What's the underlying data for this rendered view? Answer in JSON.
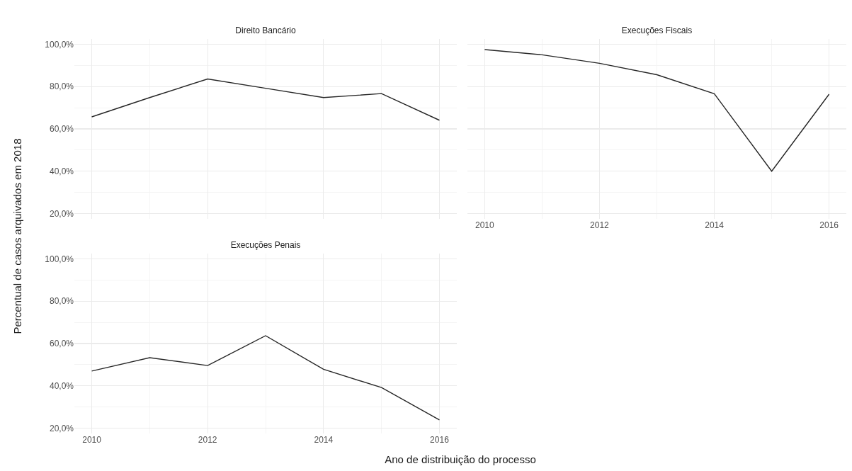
{
  "chart_data": [
    {
      "type": "line",
      "title": "Direito Bancário",
      "ylabel": "Percentual de casos arquivados em 2018",
      "x": [
        2010,
        2011,
        2012,
        2013,
        2014,
        2015,
        2016
      ],
      "series": [
        {
          "color": "#262626",
          "values": [
            65.7,
            74.8,
            83.6,
            79.2,
            74.8,
            76.7,
            64.1
          ]
        }
      ],
      "xlim": [
        2009.7,
        2016.3
      ],
      "xticks": [
        2010,
        2012,
        2014,
        2016
      ],
      "ylim": [
        17.5,
        102.5
      ],
      "yticks": [
        {
          "value": 20,
          "label": "20,0%"
        },
        {
          "value": 40,
          "label": "40,0%"
        },
        {
          "value": 60,
          "label": "60,0%"
        },
        {
          "value": 80,
          "label": "80,0%"
        },
        {
          "value": 100,
          "label": "100,0%"
        }
      ],
      "grid": true,
      "tick_labels": "y",
      "marker": "none",
      "line_style": "solid"
    },
    {
      "type": "line",
      "title": "Execuções Fiscais",
      "x": [
        2010,
        2011,
        2012,
        2013,
        2014,
        2015,
        2016
      ],
      "series": [
        {
          "color": "#262626",
          "values": [
            97.5,
            95,
            91,
            85.6,
            76.6,
            40,
            76.4
          ]
        }
      ],
      "xlim": [
        2009.7,
        2016.3
      ],
      "xticks": [
        2010,
        2012,
        2014,
        2016
      ],
      "ylim": [
        17.5,
        102.5
      ],
      "yticks": [
        20,
        40,
        60,
        80,
        100
      ],
      "grid": true,
      "tick_labels": "x",
      "marker": "none",
      "line_style": "solid"
    },
    {
      "type": "line",
      "title": "Execuções Penais",
      "xlabel": "Ano de distribuição do processo",
      "x": [
        2010,
        2011,
        2012,
        2013,
        2014,
        2015,
        2016
      ],
      "series": [
        {
          "color": "#262626",
          "values": [
            47,
            53.3,
            49.6,
            63.7,
            47.8,
            39.2,
            23.9
          ]
        }
      ],
      "xlim": [
        2009.7,
        2016.3
      ],
      "xticks": [
        2010,
        2012,
        2014,
        2016
      ],
      "ylim": [
        17.5,
        102.5
      ],
      "yticks": [
        {
          "value": 20,
          "label": "20,0%"
        },
        {
          "value": 40,
          "label": "40,0%"
        },
        {
          "value": 60,
          "label": "60,0%"
        },
        {
          "value": 80,
          "label": "80,0%"
        },
        {
          "value": 100,
          "label": "100,0%"
        }
      ],
      "grid": true,
      "marker": "none",
      "line_style": "solid"
    }
  ]
}
